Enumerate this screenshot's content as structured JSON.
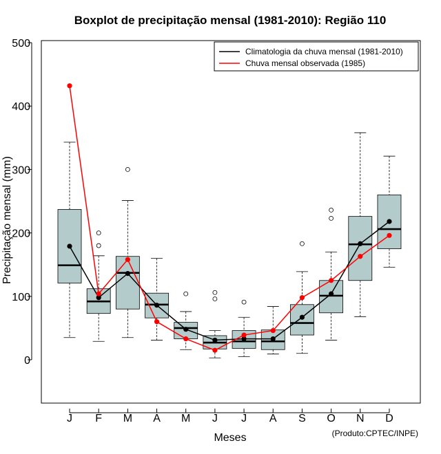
{
  "chart_data": {
    "type": "boxplot",
    "title": "Boxplot de precipitação mensal (1981-2010): Região 110",
    "xlabel": "Meses",
    "ylabel": "Precipitação mensal (mm)",
    "ylim": [
      -70,
      500
    ],
    "yticks": [
      0,
      100,
      200,
      300,
      400,
      500
    ],
    "credit": "(Produto:CPTEC/INPE)",
    "categories": [
      "J",
      "F",
      "M",
      "A",
      "M",
      "J",
      "J",
      "A",
      "S",
      "O",
      "N",
      "D"
    ],
    "boxes": [
      {
        "whisker_low": 35,
        "q1": 121,
        "median": 149,
        "q3": 237,
        "whisker_high": 343,
        "outliers": []
      },
      {
        "whisker_low": 29,
        "q1": 73,
        "median": 92,
        "q3": 112,
        "whisker_high": 164,
        "outliers": [
          180,
          200
        ]
      },
      {
        "whisker_low": 35,
        "q1": 80,
        "median": 137,
        "q3": 163,
        "whisker_high": 251,
        "outliers": [
          300
        ]
      },
      {
        "whisker_low": 31,
        "q1": 66,
        "median": 87,
        "q3": 105,
        "whisker_high": 160,
        "outliers": []
      },
      {
        "whisker_low": 16,
        "q1": 33,
        "median": 50,
        "q3": 59,
        "whisker_high": 76,
        "outliers": [
          104
        ]
      },
      {
        "whisker_low": 3,
        "q1": 17,
        "median": 27,
        "q3": 38,
        "whisker_high": 46,
        "outliers": [
          96,
          106
        ]
      },
      {
        "whisker_low": 5,
        "q1": 18,
        "median": 29,
        "q3": 46,
        "whisker_high": 67,
        "outliers": [
          91
        ]
      },
      {
        "whisker_low": 9,
        "q1": 16,
        "median": 29,
        "q3": 47,
        "whisker_high": 84,
        "outliers": []
      },
      {
        "whisker_low": 10,
        "q1": 39,
        "median": 58,
        "q3": 87,
        "whisker_high": 139,
        "outliers": [
          183
        ]
      },
      {
        "whisker_low": 31,
        "q1": 74,
        "median": 101,
        "q3": 125,
        "whisker_high": 170,
        "outliers": [
          223,
          236
        ]
      },
      {
        "whisker_low": 68,
        "q1": 125,
        "median": 182,
        "q3": 226,
        "whisker_high": 358,
        "outliers": []
      },
      {
        "whisker_low": 146,
        "q1": 175,
        "median": 206,
        "q3": 260,
        "whisker_high": 321,
        "outliers": []
      }
    ],
    "series": [
      {
        "name": "Climatologia da chuva mensal (1981-2010)",
        "color": "#000000",
        "values": [
          179,
          98,
          136,
          86,
          48,
          31,
          33,
          33,
          67,
          104,
          183,
          218
        ]
      },
      {
        "name": "Chuva mensal observada (1985)",
        "color": "#ff0000",
        "values": [
          432,
          104,
          158,
          60,
          33,
          15,
          39,
          46,
          98,
          125,
          163,
          196
        ]
      }
    ],
    "box_fill": "#b3cbcb",
    "legend_position": "top-right"
  }
}
